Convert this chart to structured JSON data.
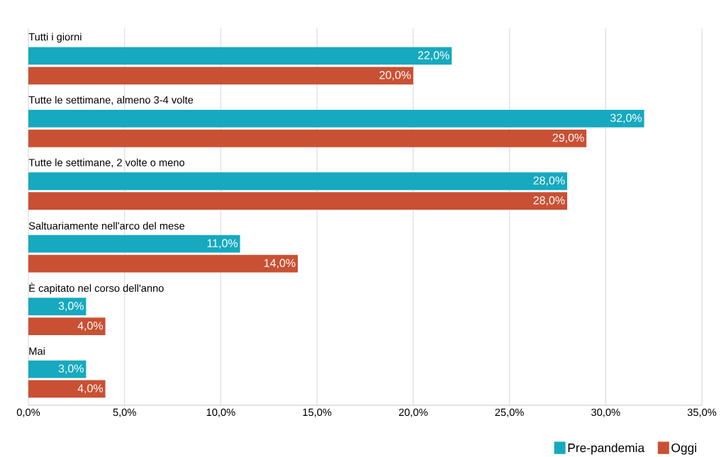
{
  "chart_data": {
    "type": "bar",
    "orientation": "horizontal",
    "categories": [
      "Tutti i giorni",
      "Tutte le settimane, almeno 3-4 volte",
      "Tutte le settimane, 2 volte o meno",
      "Saltuariamente nell'arco del mese",
      "È capitato nel corso dell'anno",
      "Mai"
    ],
    "series": [
      {
        "name": "Pre-pandemia",
        "color": "#16a9bf",
        "values": [
          22,
          32,
          28,
          11,
          3,
          3
        ],
        "value_labels": [
          "22,0%",
          "32,0%",
          "28,0%",
          "11,0%",
          "3,0%",
          "3,0%"
        ]
      },
      {
        "name": "Oggi",
        "color": "#c95033",
        "values": [
          20,
          29,
          28,
          14,
          4,
          4
        ],
        "value_labels": [
          "20,0%",
          "29,0%",
          "28,0%",
          "14,0%",
          "4,0%",
          "4,0%"
        ]
      }
    ],
    "xlim": [
      0,
      35
    ],
    "xticks": [
      {
        "value": 0,
        "label": "0,0%"
      },
      {
        "value": 5,
        "label": "5,0%"
      },
      {
        "value": 10,
        "label": "10,0%"
      },
      {
        "value": 15,
        "label": "15,0%"
      },
      {
        "value": 20,
        "label": "20,0%"
      },
      {
        "value": 25,
        "label": "25,0%"
      },
      {
        "value": 30,
        "label": "30,0%"
      },
      {
        "value": 35,
        "label": "35,0%"
      }
    ],
    "grid": "x",
    "legend": "bottom right"
  }
}
